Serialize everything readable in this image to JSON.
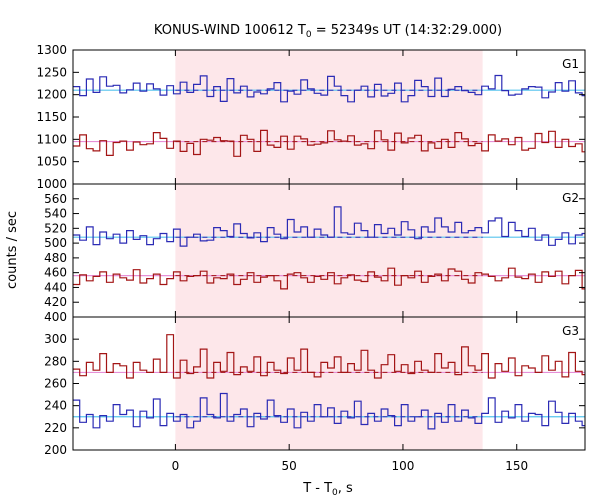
{
  "chart_data": {
    "type": "line",
    "title_main": "KONUS-WIND 100612 T",
    "title_sub": "0",
    "title_rest": " = 52349s UT (14:32:29.000)",
    "xlabel_main": "T - T",
    "xlabel_sub": "0",
    "xlabel_rest": ", s",
    "ylabel": "counts / sec",
    "xlim": [
      -45,
      180
    ],
    "xticks": [
      0,
      50,
      100,
      150
    ],
    "shaded_interval": [
      0,
      135
    ],
    "step": 2.944,
    "colors": {
      "hard": "#2b2bb5",
      "soft": "#a31515",
      "hard_bg": "#56c4ee",
      "soft_bg": "#e690d8",
      "shade": "#fde7ea"
    },
    "panels": [
      {
        "label": "G1",
        "ylim": [
          1000,
          1300
        ],
        "yticks": [
          1000,
          1050,
          1100,
          1150,
          1200,
          1250,
          1300
        ],
        "series": [
          {
            "role": "hard",
            "values": [
              1218,
              1198,
              1235,
              1205,
              1240,
              1219,
              1221,
              1204,
              1211,
              1226,
              1208,
              1224,
              1213,
              1199,
              1220,
              1202,
              1228,
              1205,
              1223,
              1242,
              1196,
              1218,
              1185,
              1236,
              1204,
              1219,
              1195,
              1206,
              1202,
              1213,
              1227,
              1184,
              1208,
              1201,
              1233,
              1213,
              1203,
              1199,
              1241,
              1219,
              1198,
              1184,
              1210,
              1219,
              1195,
              1223,
              1197,
              1203,
              1226,
              1184,
              1198,
              1232,
              1218,
              1196,
              1237,
              1196,
              1212,
              1218,
              1209,
              1205,
              1200,
              1219,
              1213,
              1243,
              1209,
              1199,
              1201,
              1213,
              1218,
              1217,
              1193,
              1206,
              1227,
              1208,
              1231,
              1204,
              1198
            ],
            "fit": [
              [
                -45,
                1210
              ],
              [
                180,
                1210
              ]
            ]
          },
          {
            "role": "soft",
            "values": [
              1085,
              1110,
              1079,
              1074,
              1097,
              1064,
              1093,
              1096,
              1076,
              1094,
              1088,
              1090,
              1115,
              1102,
              1080,
              1096,
              1073,
              1091,
              1066,
              1100,
              1098,
              1104,
              1097,
              1096,
              1062,
              1109,
              1100,
              1073,
              1120,
              1087,
              1082,
              1107,
              1078,
              1107,
              1101,
              1087,
              1089,
              1092,
              1119,
              1099,
              1096,
              1108,
              1087,
              1090,
              1079,
              1119,
              1099,
              1076,
              1114,
              1092,
              1103,
              1109,
              1074,
              1092,
              1080,
              1100,
              1082,
              1115,
              1101,
              1086,
              1091,
              1074,
              1110,
              1096,
              1101,
              1088,
              1104,
              1076,
              1080,
              1113,
              1093,
              1118,
              1082,
              1100,
              1084,
              1090,
              1072
            ],
            "fit": [
              [
                -45,
                1095
              ],
              [
                180,
                1095
              ]
            ]
          }
        ]
      },
      {
        "label": "G2",
        "ylim": [
          400,
          580
        ],
        "yticks": [
          400,
          420,
          440,
          460,
          480,
          500,
          520,
          540,
          560
        ],
        "series": [
          {
            "role": "hard",
            "values": [
              511,
              504,
              522,
              498,
              515,
              506,
              512,
              500,
              517,
              505,
              510,
              498,
              506,
              513,
              502,
              519,
              496,
              508,
              512,
              503,
              504,
              521,
              517,
              509,
              526,
              513,
              507,
              514,
              502,
              521,
              512,
              506,
              532,
              515,
              522,
              508,
              519,
              511,
              508,
              549,
              514,
              512,
              527,
              517,
              508,
              525,
              513,
              520,
              511,
              529,
              518,
              506,
              522,
              515,
              534,
              522,
              515,
              528,
              514,
              517,
              521,
              514,
              530,
              534,
              509,
              528,
              517,
              509,
              520,
              504,
              511,
              497,
              505,
              514,
              499,
              511,
              513
            ],
            "fit": [
              [
                -45,
                508
              ],
              [
                180,
                508
              ]
            ]
          },
          {
            "role": "soft",
            "values": [
              444,
              457,
              449,
              455,
              461,
              447,
              458,
              453,
              450,
              464,
              446,
              452,
              458,
              444,
              452,
              461,
              449,
              455,
              456,
              462,
              446,
              453,
              452,
              458,
              444,
              451,
              460,
              447,
              454,
              456,
              449,
              438,
              458,
              460,
              453,
              447,
              455,
              451,
              460,
              445,
              453,
              457,
              450,
              448,
              461,
              454,
              449,
              466,
              443,
              456,
              453,
              462,
              447,
              455,
              458,
              449,
              465,
              462,
              451,
              446,
              460,
              458,
              455,
              449,
              453,
              466,
              454,
              452,
              458,
              447,
              461,
              455,
              462,
              445,
              456,
              463,
              438
            ],
            "fit": [
              [
                -45,
                456
              ],
              [
                180,
                456
              ]
            ]
          }
        ]
      },
      {
        "label": "G3",
        "ylim": [
          200,
          320
        ],
        "yticks": [
          200,
          220,
          240,
          260,
          280,
          300
        ],
        "series": [
          {
            "role": "hard",
            "values": [
              245,
              225,
              232,
              220,
              231,
              226,
              241,
              232,
              236,
              221,
              235,
              229,
              246,
              222,
              233,
              226,
              232,
              220,
              226,
              247,
              232,
              229,
              251,
              226,
              232,
              237,
              221,
              233,
              228,
              245,
              231,
              225,
              237,
              220,
              234,
              226,
              241,
              230,
              238,
              224,
              235,
              229,
              244,
              223,
              233,
              226,
              237,
              231,
              222,
              241,
              226,
              230,
              236,
              219,
              233,
              225,
              241,
              226,
              236,
              229,
              224,
              233,
              247,
              225,
              235,
              229,
              241,
              226,
              233,
              232,
              222,
              244,
              234,
              224,
              233,
              226,
              222
            ],
            "fit": [
              [
                -45,
                230
              ],
              [
                180,
                230
              ]
            ]
          },
          {
            "role": "soft",
            "values": [
              273,
              267,
              279,
              272,
              287,
              270,
              278,
              276,
              265,
              279,
              272,
              270,
              282,
              270,
              304,
              265,
              281,
              269,
              275,
              291,
              265,
              279,
              271,
              288,
              268,
              275,
              271,
              284,
              267,
              279,
              272,
              269,
              283,
              272,
              291,
              270,
              266,
              279,
              274,
              284,
              270,
              278,
              272,
              290,
              272,
              265,
              277,
              286,
              271,
              277,
              269,
              280,
              272,
              270,
              287,
              274,
              279,
              268,
              293,
              276,
              272,
              287,
              265,
              278,
              271,
              283,
              267,
              276,
              274,
              270,
              285,
              272,
              280,
              266,
              288,
              271,
              268
            ],
            "fit": [
              [
                -45,
                270
              ],
              [
                180,
                270
              ]
            ]
          }
        ]
      }
    ]
  }
}
